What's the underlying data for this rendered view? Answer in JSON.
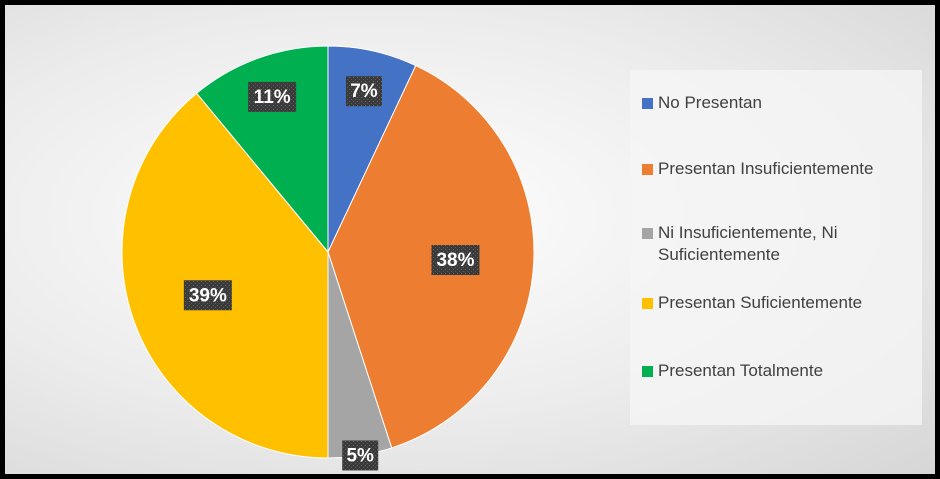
{
  "chart_data": {
    "type": "pie",
    "categories": [
      "No Presentan",
      "Presentan Insuficientemente",
      "Ni Insuficientemente, Ni Suficientemente",
      "Presentan Suficientemente",
      "Presentan Totalmente"
    ],
    "values": [
      7,
      38,
      5,
      39,
      11
    ],
    "value_labels": [
      "7%",
      "38%",
      "5%",
      "39%",
      "11%"
    ],
    "colors": [
      "#4472c4",
      "#ed7d31",
      "#a5a5a5",
      "#ffc000",
      "#00b050"
    ],
    "legend": "right"
  }
}
